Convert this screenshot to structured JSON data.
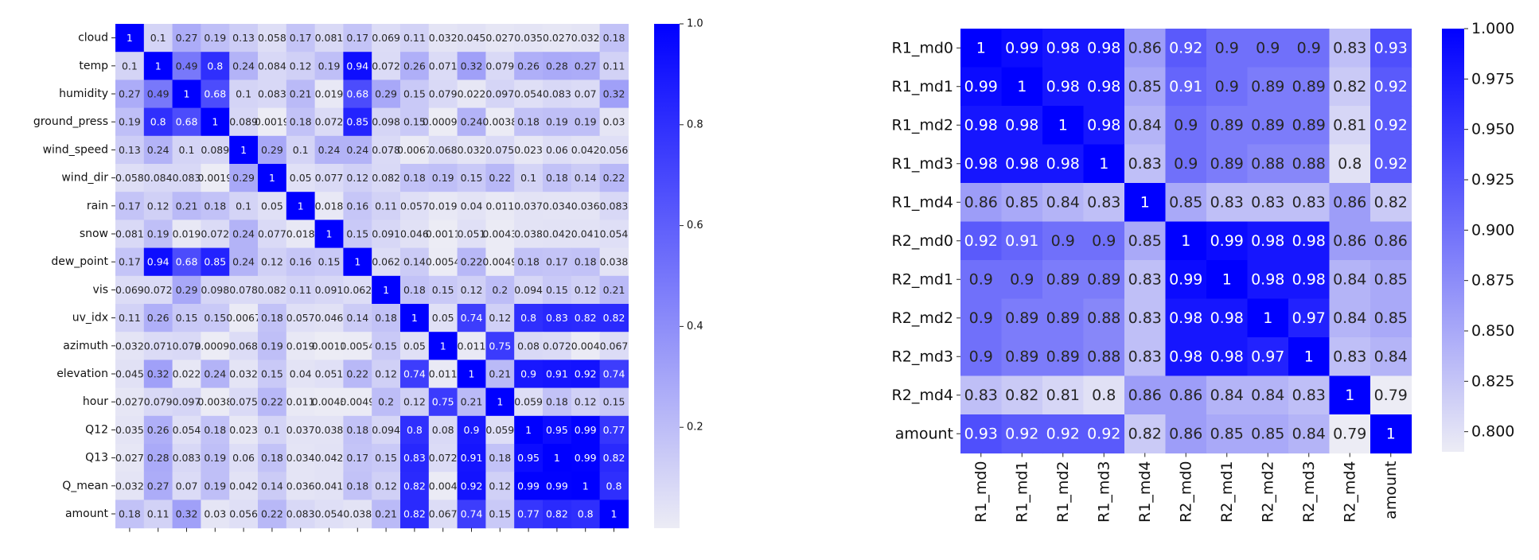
{
  "chart_data": [
    {
      "type": "heatmap",
      "title": "",
      "xlabel": "",
      "ylabel": "",
      "labels": [
        "cloud",
        "temp",
        "humidity",
        "ground_press",
        "wind_speed",
        "wind_dir",
        "rain",
        "snow",
        "dew_point",
        "vis",
        "uv_idx",
        "azimuth",
        "elevation",
        "hour",
        "Q12",
        "Q13",
        "Q_mean",
        "amount"
      ],
      "annotations": [
        [
          "1",
          "0.1",
          "0.27",
          "0.19",
          "0.13",
          "0.058",
          "0.17",
          "0.081",
          "0.17",
          "0.069",
          "0.11",
          "0.032",
          "0.045",
          "0.027",
          "0.035",
          "0.027",
          "0.032",
          "0.18"
        ],
        [
          "0.1",
          "1",
          "0.49",
          "0.8",
          "0.24",
          "0.084",
          "0.12",
          "0.19",
          "0.94",
          "0.072",
          "0.26",
          "0.071",
          "0.32",
          "0.079",
          "0.26",
          "0.28",
          "0.27",
          "0.11"
        ],
        [
          "0.27",
          "0.49",
          "1",
          "0.68",
          "0.1",
          "0.083",
          "0.21",
          "0.019",
          "0.68",
          "0.29",
          "0.15",
          "0.079",
          "0.022",
          "0.097",
          "0.054",
          "0.083",
          "0.07",
          "0.32"
        ],
        [
          "0.19",
          "0.8",
          "0.68",
          "1",
          "0.089",
          "0.0019",
          "0.18",
          "0.072",
          "0.85",
          "0.098",
          "0.15",
          "0.00096",
          "0.24",
          "0.0038",
          "0.18",
          "0.19",
          "0.19",
          "0.03"
        ],
        [
          "0.13",
          "0.24",
          "0.1",
          "0.089",
          "1",
          "0.29",
          "0.1",
          "0.24",
          "0.24",
          "0.078",
          "0.0067",
          "0.068",
          "0.032",
          "0.075",
          "0.023",
          "0.06",
          "0.042",
          "0.056"
        ],
        [
          "0.058",
          "0.084",
          "0.083",
          "0.0019",
          "0.29",
          "1",
          "0.05",
          "0.077",
          "0.12",
          "0.082",
          "0.18",
          "0.19",
          "0.15",
          "0.22",
          "0.1",
          "0.18",
          "0.14",
          "0.22"
        ],
        [
          "0.17",
          "0.12",
          "0.21",
          "0.18",
          "0.1",
          "0.05",
          "1",
          "0.018",
          "0.16",
          "0.11",
          "0.057",
          "0.019",
          "0.04",
          "0.011",
          "0.037",
          "0.034",
          "0.036",
          "0.083"
        ],
        [
          "0.081",
          "0.19",
          "0.019",
          "0.072",
          "0.24",
          "0.077",
          "0.018",
          "1",
          "0.15",
          "0.091",
          "0.046",
          "0.0011",
          "0.051",
          "0.0043",
          "0.038",
          "0.042",
          "0.041",
          "0.054"
        ],
        [
          "0.17",
          "0.94",
          "0.68",
          "0.85",
          "0.24",
          "0.12",
          "0.16",
          "0.15",
          "1",
          "0.062",
          "0.14",
          "0.0054",
          "0.22",
          "0.0049",
          "0.18",
          "0.17",
          "0.18",
          "0.038"
        ],
        [
          "0.069",
          "0.072",
          "0.29",
          "0.098",
          "0.078",
          "0.082",
          "0.11",
          "0.091",
          "0.062",
          "1",
          "0.18",
          "0.15",
          "0.12",
          "0.2",
          "0.094",
          "0.15",
          "0.12",
          "0.21"
        ],
        [
          "0.11",
          "0.26",
          "0.15",
          "0.15",
          "0.0067",
          "0.18",
          "0.057",
          "0.046",
          "0.14",
          "0.18",
          "1",
          "0.05",
          "0.74",
          "0.12",
          "0.8",
          "0.83",
          "0.82",
          "0.82"
        ],
        [
          "0.032",
          "0.071",
          "0.079",
          "0.00096",
          "0.068",
          "0.19",
          "0.019",
          "0.0011",
          "0.0054",
          "0.15",
          "0.05",
          "1",
          "0.011",
          "0.75",
          "0.08",
          "0.072",
          "0.004",
          "0.067"
        ],
        [
          "0.045",
          "0.32",
          "0.022",
          "0.24",
          "0.032",
          "0.15",
          "0.04",
          "0.051",
          "0.22",
          "0.12",
          "0.74",
          "0.011",
          "1",
          "0.21",
          "0.9",
          "0.91",
          "0.92",
          "0.74"
        ],
        [
          "0.027",
          "0.079",
          "0.097",
          "0.0038",
          "0.075",
          "0.22",
          "0.011",
          "0.0043",
          "0.0049",
          "0.2",
          "0.12",
          "0.75",
          "0.21",
          "1",
          "0.059",
          "0.18",
          "0.12",
          "0.15"
        ],
        [
          "0.035",
          "0.26",
          "0.054",
          "0.18",
          "0.023",
          "0.1",
          "0.037",
          "0.038",
          "0.18",
          "0.094",
          "0.8",
          "0.08",
          "0.9",
          "0.059",
          "1",
          "0.95",
          "0.99",
          "0.77"
        ],
        [
          "0.027",
          "0.28",
          "0.083",
          "0.19",
          "0.06",
          "0.18",
          "0.034",
          "0.042",
          "0.17",
          "0.15",
          "0.83",
          "0.072",
          "0.91",
          "0.18",
          "0.95",
          "1",
          "0.99",
          "0.82"
        ],
        [
          "0.032",
          "0.27",
          "0.07",
          "0.19",
          "0.042",
          "0.14",
          "0.036",
          "0.041",
          "0.18",
          "0.12",
          "0.82",
          "0.004",
          "0.92",
          "0.12",
          "0.99",
          "0.99",
          "1",
          "0.8"
        ],
        [
          "0.18",
          "0.11",
          "0.32",
          "0.03",
          "0.056",
          "0.22",
          "0.083",
          "0.054",
          "0.038",
          "0.21",
          "0.82",
          "0.067",
          "0.74",
          "0.15",
          "0.77",
          "0.82",
          "0.8",
          "1"
        ]
      ],
      "vmin": 0.0,
      "vmax": 1.0,
      "colorbar_ticks": [
        "0.2",
        "0.4",
        "0.6",
        "0.8",
        "1.0"
      ],
      "colorbar_tick_values": [
        0.2,
        0.4,
        0.6,
        0.8,
        1.0
      ],
      "show_x_tick_labels": false,
      "colormap": {
        "low": "#ececf5",
        "high": "#0000ff"
      }
    },
    {
      "type": "heatmap",
      "title": "",
      "xlabel": "",
      "ylabel": "",
      "labels": [
        "R1_md0",
        "R1_md1",
        "R1_md2",
        "R1_md3",
        "R1_md4",
        "R2_md0",
        "R2_md1",
        "R2_md2",
        "R2_md3",
        "R2_md4",
        "amount"
      ],
      "annotations": [
        [
          "1",
          "0.99",
          "0.98",
          "0.98",
          "0.86",
          "0.92",
          "0.9",
          "0.9",
          "0.9",
          "0.83",
          "0.93"
        ],
        [
          "0.99",
          "1",
          "0.98",
          "0.98",
          "0.85",
          "0.91",
          "0.9",
          "0.89",
          "0.89",
          "0.82",
          "0.92"
        ],
        [
          "0.98",
          "0.98",
          "1",
          "0.98",
          "0.84",
          "0.9",
          "0.89",
          "0.89",
          "0.89",
          "0.81",
          "0.92"
        ],
        [
          "0.98",
          "0.98",
          "0.98",
          "1",
          "0.83",
          "0.9",
          "0.89",
          "0.88",
          "0.88",
          "0.8",
          "0.92"
        ],
        [
          "0.86",
          "0.85",
          "0.84",
          "0.83",
          "1",
          "0.85",
          "0.83",
          "0.83",
          "0.83",
          "0.86",
          "0.82"
        ],
        [
          "0.92",
          "0.91",
          "0.9",
          "0.9",
          "0.85",
          "1",
          "0.99",
          "0.98",
          "0.98",
          "0.86",
          "0.86"
        ],
        [
          "0.9",
          "0.9",
          "0.89",
          "0.89",
          "0.83",
          "0.99",
          "1",
          "0.98",
          "0.98",
          "0.84",
          "0.85"
        ],
        [
          "0.9",
          "0.89",
          "0.89",
          "0.88",
          "0.83",
          "0.98",
          "0.98",
          "1",
          "0.97",
          "0.84",
          "0.85"
        ],
        [
          "0.9",
          "0.89",
          "0.89",
          "0.88",
          "0.83",
          "0.98",
          "0.98",
          "0.97",
          "1",
          "0.83",
          "0.84"
        ],
        [
          "0.83",
          "0.82",
          "0.81",
          "0.8",
          "0.86",
          "0.86",
          "0.84",
          "0.84",
          "0.83",
          "1",
          "0.79"
        ],
        [
          "0.93",
          "0.92",
          "0.92",
          "0.92",
          "0.82",
          "0.86",
          "0.85",
          "0.85",
          "0.84",
          "0.79",
          "1"
        ]
      ],
      "vmin": 0.79,
      "vmax": 1.0,
      "colorbar_ticks": [
        "0.800",
        "0.825",
        "0.850",
        "0.875",
        "0.900",
        "0.925",
        "0.950",
        "0.975",
        "1.000"
      ],
      "colorbar_tick_values": [
        0.8,
        0.825,
        0.85,
        0.875,
        0.9,
        0.925,
        0.95,
        0.975,
        1.0
      ],
      "show_x_tick_labels": true,
      "colormap": {
        "low": "#ececf5",
        "high": "#0000ff"
      }
    }
  ]
}
